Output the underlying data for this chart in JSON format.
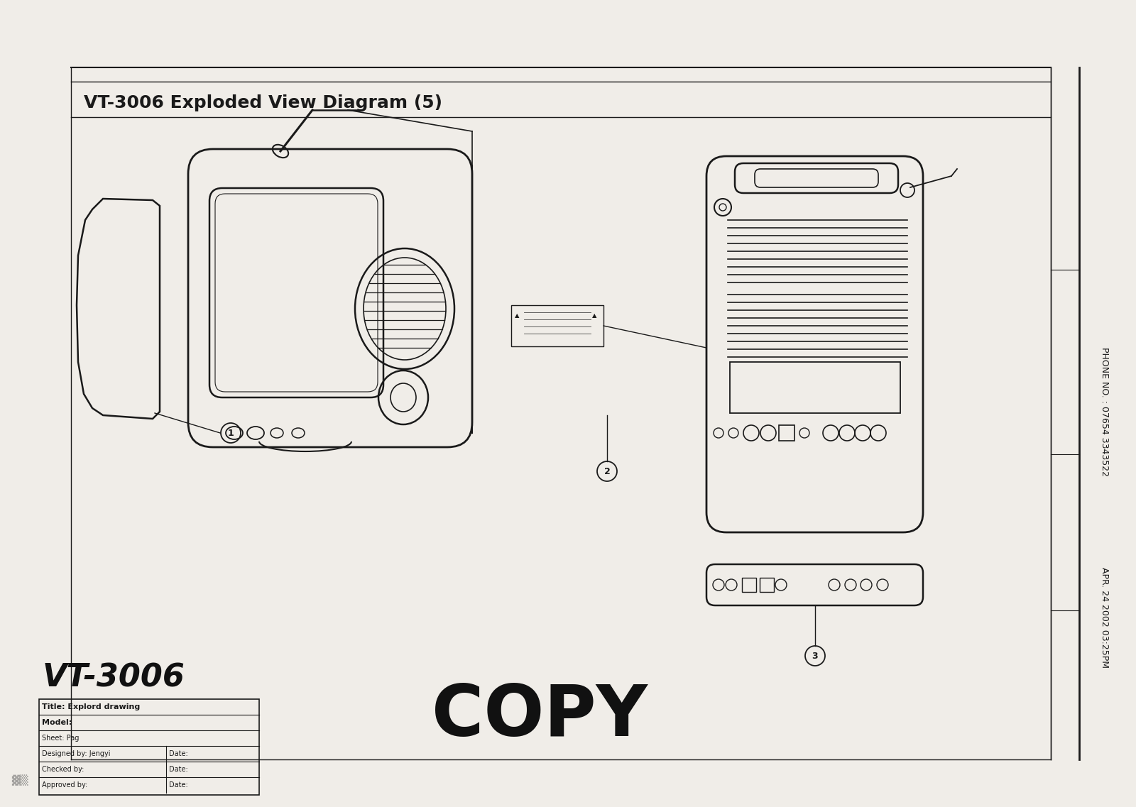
{
  "title": "VT-3006 Exploded View Diagram (5)",
  "bg_color": "#f0ede8",
  "draw_color": "#1a1a1a",
  "model_text": "VT-3006",
  "copy_text": "COPY",
  "phone_text": "PHONE NO. : 07654 3343522",
  "date_text": "APR. 24 2002 03:25PM",
  "table_rows": [
    [
      "Title: Explord drawing",
      ""
    ],
    [
      "Model:",
      ""
    ],
    [
      "Sheet: Pag",
      ""
    ],
    [
      "Designed by: Jengyi",
      "Date:"
    ],
    [
      "Checked by:",
      "Date:"
    ],
    [
      "Approved by:",
      "Date:"
    ]
  ]
}
